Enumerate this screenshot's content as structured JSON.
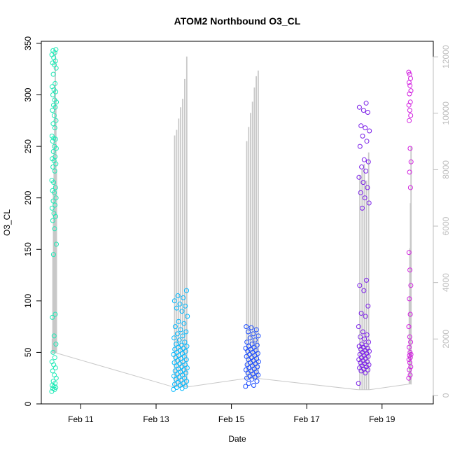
{
  "chart_data": {
    "type": "scatter",
    "title": "ATOM2 Northbound O3_CL",
    "xlabel": "Date",
    "ylabel": "O3_CL",
    "xticks": [
      "Feb 11",
      "Feb 13",
      "Feb 15",
      "Feb 17",
      "Feb 19"
    ],
    "xlim": [
      "Feb 09 22:50",
      "Feb 20 08:40"
    ],
    "ylim": [
      0,
      352
    ],
    "yticks": [
      0,
      50,
      100,
      150,
      200,
      250,
      300,
      350
    ],
    "y2lim": [
      -300,
      12550
    ],
    "y2ticks": [
      0,
      2000,
      4000,
      6000,
      8000,
      10000,
      12000
    ],
    "axis_colors": {
      "left": "#000000",
      "right": "#bdbdbd",
      "line": "#c8c8c8"
    },
    "series": [
      {
        "color": "#1de9b6",
        "time_range": [
          "Feb 10 05:30",
          "Feb 10 08:30"
        ],
        "values": [
          12,
          14,
          15,
          16,
          17,
          18,
          20,
          22,
          25,
          28,
          32,
          35,
          38,
          41,
          45,
          50,
          58,
          66,
          84,
          87,
          145,
          155,
          170,
          178,
          182,
          185,
          190,
          193,
          197,
          200,
          205,
          207,
          210,
          215,
          217,
          226,
          230,
          233,
          236,
          238,
          240,
          245,
          248,
          250,
          255,
          257,
          258,
          260,
          268,
          272,
          275,
          280,
          285,
          288,
          290,
          293,
          295,
          300,
          303,
          305,
          308,
          311,
          320,
          326,
          329,
          331,
          333,
          336,
          339,
          341,
          343,
          344
        ]
      },
      {
        "color": "#00b8ff",
        "time_range": [
          "Feb 13 11:00",
          "Feb 13 20:00"
        ],
        "values": [
          14,
          15,
          16,
          17,
          18,
          19,
          20,
          21,
          22,
          23,
          24,
          25,
          26,
          27,
          28,
          29,
          30,
          31,
          32,
          33,
          34,
          35,
          36,
          37,
          38,
          39,
          40,
          41,
          42,
          43,
          44,
          45,
          46,
          47,
          48,
          49,
          50,
          51,
          52,
          53,
          54,
          55,
          56,
          57,
          58,
          60,
          62,
          64,
          66,
          68,
          70,
          72,
          75,
          78,
          80,
          85,
          90,
          93,
          95,
          97,
          100,
          103,
          105,
          110
        ]
      },
      {
        "color": "#1a4bff",
        "time_range": [
          "Feb 15 09:00",
          "Feb 15 17:30"
        ],
        "values": [
          17,
          18,
          20,
          22,
          24,
          25,
          26,
          27,
          28,
          29,
          30,
          31,
          32,
          33,
          34,
          35,
          36,
          37,
          38,
          39,
          40,
          41,
          42,
          43,
          44,
          45,
          46,
          47,
          48,
          49,
          50,
          51,
          52,
          53,
          54,
          55,
          56,
          57,
          58,
          60,
          62,
          64,
          66,
          68,
          70,
          72,
          74,
          75
        ]
      },
      {
        "color": "#7b1fe8",
        "time_range": [
          "Feb 18 09:00",
          "Feb 18 16:00"
        ],
        "values": [
          20,
          30,
          32,
          33,
          34,
          35,
          36,
          37,
          38,
          39,
          40,
          41,
          42,
          43,
          44,
          45,
          46,
          47,
          48,
          49,
          50,
          51,
          52,
          53,
          54,
          55,
          56,
          57,
          58,
          60,
          63,
          65,
          67,
          70,
          75,
          85,
          88,
          95,
          110,
          115,
          120,
          190,
          195,
          200,
          205,
          210,
          215,
          220,
          226,
          230,
          235,
          237,
          250,
          255,
          260,
          265,
          268,
          270,
          283,
          285,
          288,
          292
        ]
      },
      {
        "color": "#d21ee0",
        "time_range": [
          "Feb 19 17:00",
          "Feb 19 18:30"
        ],
        "values": [
          25,
          28,
          33,
          36,
          40,
          43,
          45,
          47,
          48,
          50,
          55,
          60,
          65,
          75,
          87,
          102,
          115,
          130,
          147,
          210,
          225,
          235,
          248,
          275,
          280,
          285,
          290,
          293,
          301,
          304,
          309,
          312,
          316,
          320,
          322
        ]
      }
    ],
    "secondary_line": {
      "style": "grey connecting line on right axis",
      "segments": [
        {
          "t": [
            "Feb 10 05:30",
            "Feb 10 08:30"
          ],
          "base": 1500,
          "peaks": [
            2000,
            5000,
            7200,
            9000,
            11000,
            12200,
            10500,
            8000
          ]
        },
        {
          "t": [
            "Feb 13 11:00",
            "Feb 13 20:00"
          ],
          "base": 300,
          "peaks": [
            9200,
            9400,
            9800,
            10200,
            10500,
            11200,
            12000
          ]
        },
        {
          "t": [
            "Feb 15 09:00",
            "Feb 15 17:30"
          ],
          "base": 600,
          "peaks": [
            9000,
            9500,
            10000,
            10400,
            10900,
            11300,
            11500
          ]
        },
        {
          "t": [
            "Feb 18 09:00",
            "Feb 18 16:00"
          ],
          "base": 200,
          "peaks": [
            7800,
            8000,
            8200,
            7600,
            8600
          ]
        },
        {
          "t": [
            "Feb 19 17:00",
            "Feb 19 18:30"
          ],
          "base": 400,
          "peaks": [
            3500,
            5200,
            6800,
            8800
          ]
        }
      ]
    }
  }
}
